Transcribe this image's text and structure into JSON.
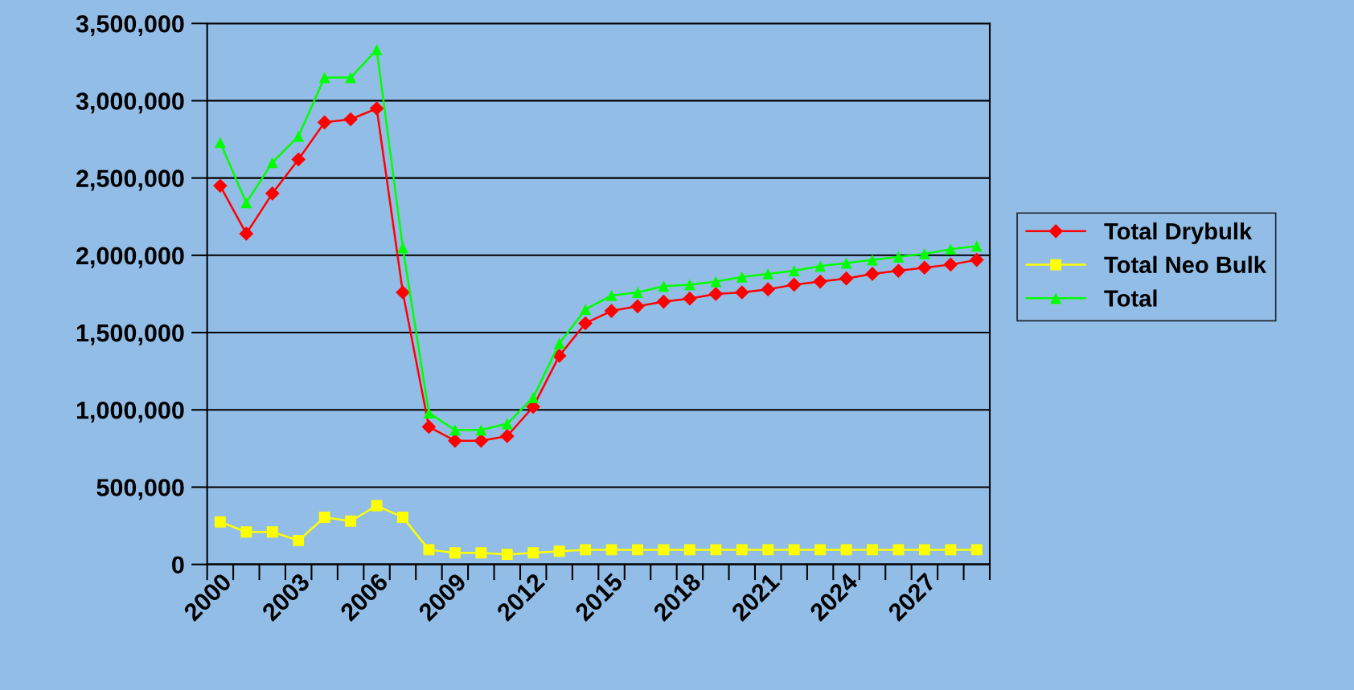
{
  "chart_data": {
    "type": "line",
    "categories": [
      "2000",
      null,
      null,
      "2003",
      null,
      null,
      "2006",
      null,
      null,
      "2009",
      null,
      null,
      "2012",
      null,
      null,
      "2015",
      null,
      null,
      "2018",
      null,
      null,
      "2021",
      null,
      null,
      "2024",
      null,
      null,
      "2027",
      null,
      null
    ],
    "series": [
      {
        "name": "Total Drybulk",
        "color": "#ff0000",
        "marker": "diamond",
        "values": [
          2450000,
          2140000,
          2400000,
          2620000,
          2860000,
          2880000,
          2950000,
          1760000,
          890000,
          800000,
          800000,
          830000,
          1020000,
          1350000,
          1560000,
          1640000,
          1670000,
          1700000,
          1720000,
          1750000,
          1760000,
          1780000,
          1810000,
          1830000,
          1850000,
          1880000,
          1900000,
          1920000,
          1940000,
          1970000
        ]
      },
      {
        "name": "Total Neo Bulk",
        "color": "#ffff00",
        "marker": "square",
        "values": [
          275000,
          210000,
          210000,
          155000,
          305000,
          280000,
          380000,
          305000,
          95000,
          75000,
          75000,
          65000,
          75000,
          85000,
          95000,
          95000,
          95000,
          95000,
          95000,
          95000,
          95000,
          95000,
          95000,
          95000,
          95000,
          95000,
          95000,
          95000,
          95000,
          95000
        ]
      },
      {
        "name": "Total",
        "color": "#00ff00",
        "marker": "triangle",
        "values": [
          2730000,
          2340000,
          2600000,
          2770000,
          3150000,
          3150000,
          3330000,
          2050000,
          980000,
          870000,
          870000,
          910000,
          1080000,
          1430000,
          1650000,
          1740000,
          1760000,
          1800000,
          1810000,
          1830000,
          1860000,
          1880000,
          1900000,
          1930000,
          1950000,
          1970000,
          1990000,
          2010000,
          2040000,
          2060000
        ]
      }
    ],
    "ylim": [
      0,
      3500000
    ],
    "yticks": [
      {
        "value": 0,
        "label": "0"
      },
      {
        "value": 500000,
        "label": "500,000"
      },
      {
        "value": 1000000,
        "label": "1,000,000"
      },
      {
        "value": 1500000,
        "label": "1,500,000"
      },
      {
        "value": 2000000,
        "label": "2,000,000"
      },
      {
        "value": 2500000,
        "label": "2,500,000"
      },
      {
        "value": 3000000,
        "label": "3,000,000"
      },
      {
        "value": 3500000,
        "label": "3,500,000"
      }
    ],
    "grid": "y",
    "legend": "right",
    "line_style": "solid"
  }
}
